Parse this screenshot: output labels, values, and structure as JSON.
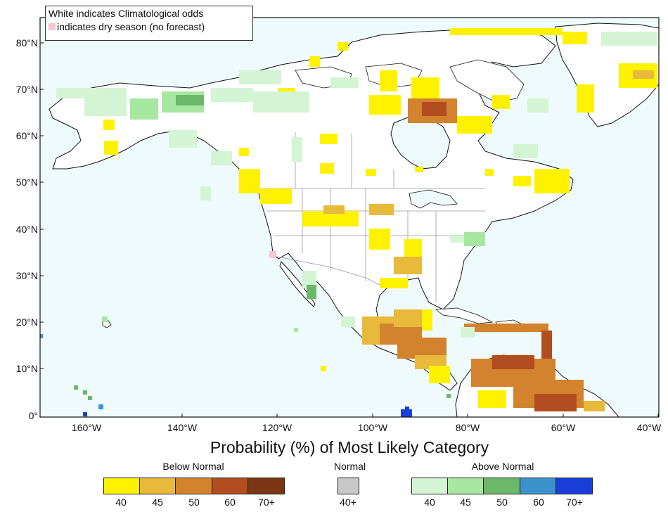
{
  "legend_note": {
    "line1": "White indicates Climatological odds",
    "line2": "indicates dry season (no forecast)"
  },
  "axes": {
    "y_labels": [
      "80°N",
      "70°N",
      "60°N",
      "50°N",
      "40°N",
      "30°N",
      "20°N",
      "10°N",
      "0°"
    ],
    "x_labels": [
      "160°W",
      "140°W",
      "120°W",
      "100°W",
      "80°W",
      "60°W",
      "40°W"
    ]
  },
  "title": "Probability (%) of Most Likely Category",
  "colorbars": {
    "below": {
      "title": "Below Normal",
      "ticks": [
        "40",
        "45",
        "50",
        "60",
        "70+"
      ],
      "colors": [
        "#fff200",
        "#e8b93a",
        "#d3822e",
        "#b24d1f",
        "#7a3512"
      ]
    },
    "normal": {
      "title": "Normal",
      "ticks": [
        "40+"
      ],
      "colors": [
        "#c8c8c8"
      ]
    },
    "above": {
      "title": "Above Normal",
      "ticks": [
        "40",
        "45",
        "50",
        "60",
        "70+"
      ],
      "colors": [
        "#d3f5d3",
        "#a6e8a0",
        "#6cb86a",
        "#3c92cc",
        "#1a3fd9"
      ]
    }
  },
  "colors": {
    "ocean": "#eefafc",
    "land": "#ffffff",
    "dry_season": "#f7c6cf"
  }
}
